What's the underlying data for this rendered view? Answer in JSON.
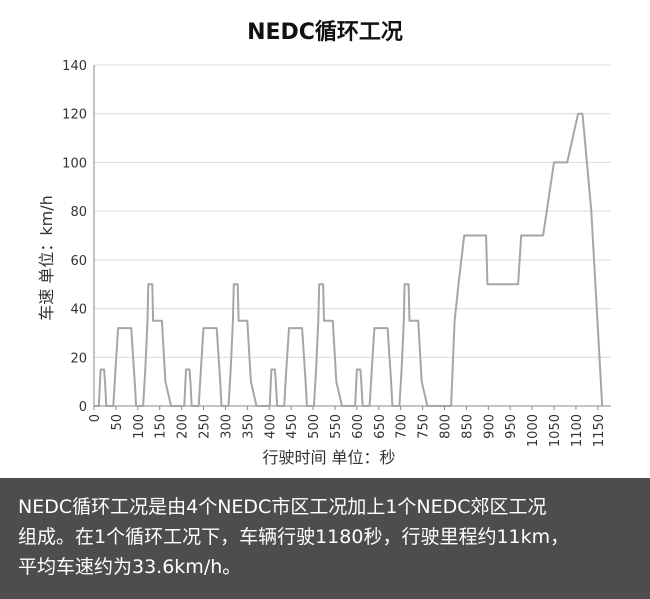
{
  "chart_data": {
    "type": "line",
    "title": "NEDC循环工况",
    "xlabel": "行驶时间  单位：秒",
    "ylabel": "车速  单位：km/h",
    "xlim": [
      0,
      1180
    ],
    "ylim": [
      0,
      140
    ],
    "xticks": [
      "0",
      "50",
      "100",
      "150",
      "200",
      "250",
      "300",
      "350",
      "400",
      "450",
      "500",
      "550",
      "600",
      "650",
      "700",
      "750",
      "800",
      "850",
      "900",
      "950",
      "1000",
      "1050",
      "1100",
      "1150"
    ],
    "yticks": [
      "0",
      "20",
      "40",
      "60",
      "80",
      "100",
      "120",
      "140"
    ],
    "grid": "horizontal",
    "line_color": "#a6a6a6",
    "series": [
      {
        "x": [
          0,
          11,
          15,
          23,
          25,
          28,
          44,
          49,
          55,
          61,
          85,
          93,
          96,
          112,
          117,
          122,
          124,
          133,
          135,
          143,
          155,
          163,
          176,
          178,
          188
        ],
        "y": [
          0,
          0,
          15,
          15,
          10,
          0,
          0,
          15,
          32,
          32,
          32,
          10,
          0,
          0,
          15,
          35,
          50,
          50,
          35,
          35,
          35,
          10,
          0,
          0,
          0
        ]
      }
    ]
  },
  "caption": {
    "line1": "NEDC循环工况是由4个NEDC市区工况加上1个NEDC郊区工况",
    "line2": "组成。在1个循环工况下，车辆行驶1180秒，行驶里程约11km，",
    "line3": "平均车速约为33.6km/h。"
  }
}
